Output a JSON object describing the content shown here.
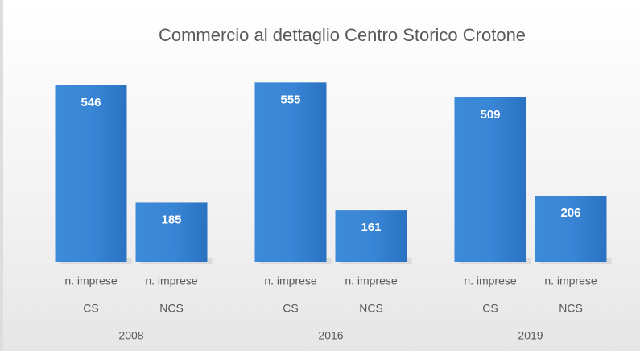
{
  "chart_data": {
    "type": "bar",
    "title": "Commercio al dettaglio Centro Storico Crotone",
    "categories": [
      "n. imprese",
      "n. imprese",
      "n. imprese",
      "n. imprese",
      "n. imprese",
      "n. imprese"
    ],
    "subcategories": [
      "CS",
      "NCS",
      "CS",
      "NCS",
      "CS",
      "NCS"
    ],
    "groups": [
      "2008",
      "2016",
      "2019"
    ],
    "values": [
      546,
      185,
      555,
      161,
      509,
      206
    ],
    "color": "#2f7bd0"
  }
}
